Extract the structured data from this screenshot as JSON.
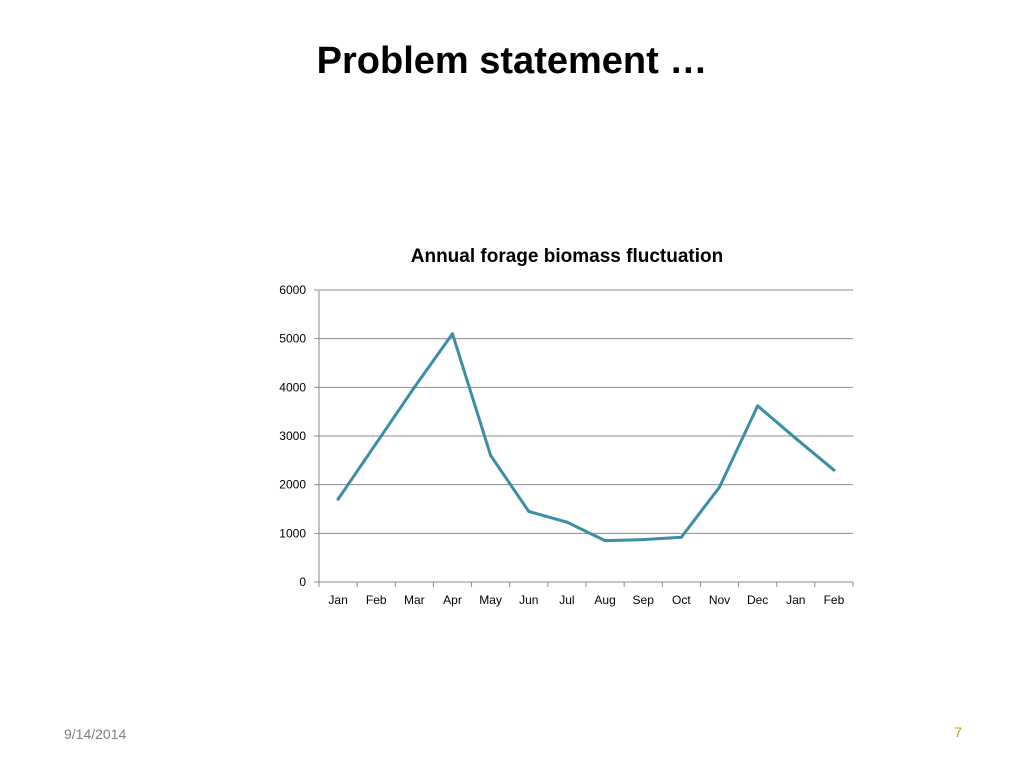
{
  "slide": {
    "title": "Problem statement …",
    "date": "9/14/2014",
    "page_number": "7"
  },
  "chart_data": {
    "type": "line",
    "title": "Annual forage biomass fluctuation",
    "xlabel": "",
    "ylabel": "",
    "categories": [
      "Jan",
      "Feb",
      "Mar",
      "Apr",
      "May",
      "Jun",
      "Jul",
      "Aug",
      "Sep",
      "Oct",
      "Nov",
      "Dec",
      "Jan",
      "Feb"
    ],
    "series": [
      {
        "values": [
          1700,
          2850,
          4000,
          5100,
          2600,
          1450,
          1230,
          850,
          870,
          920,
          1950,
          3620,
          2950,
          2300
        ]
      }
    ],
    "ylim": [
      0,
      6000
    ],
    "yticks": [
      0,
      1000,
      2000,
      3000,
      4000,
      5000,
      6000
    ],
    "grid": true,
    "legend": false,
    "line_color": "#3b8ea5"
  }
}
